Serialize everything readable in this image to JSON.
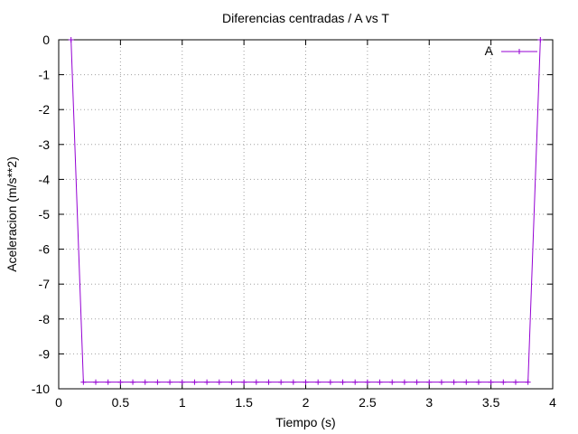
{
  "chart_data": {
    "type": "line",
    "title": "Diferencias centradas / A vs T",
    "xlabel": "Tiempo (s)",
    "ylabel": "Aceleracion (m/s**2)",
    "xlim": [
      0,
      4
    ],
    "ylim": [
      -10,
      0
    ],
    "xticks": [
      "0",
      "0.5",
      "1",
      "1.5",
      "2",
      "2.5",
      "3",
      "3.5",
      "4"
    ],
    "yticks": [
      "0",
      "-1",
      "-2",
      "-3",
      "-4",
      "-5",
      "-6",
      "-7",
      "-8",
      "-9",
      "-10"
    ],
    "grid": true,
    "legend_position": "top-right",
    "series": [
      {
        "name": "A",
        "color": "#9400d3",
        "marker": "plus",
        "x": [
          0.1,
          0.2,
          0.3,
          0.4,
          0.5,
          0.6,
          0.7,
          0.8,
          0.9,
          1.0,
          1.1,
          1.2,
          1.3,
          1.4,
          1.5,
          1.6,
          1.7,
          1.8,
          1.9,
          2.0,
          2.1,
          2.2,
          2.3,
          2.4,
          2.5,
          2.6,
          2.7,
          2.8,
          2.9,
          3.0,
          3.1,
          3.2,
          3.3,
          3.4,
          3.5,
          3.6,
          3.7,
          3.8,
          3.9
        ],
        "y": [
          0,
          -9.81,
          -9.81,
          -9.81,
          -9.81,
          -9.81,
          -9.81,
          -9.81,
          -9.81,
          -9.81,
          -9.81,
          -9.81,
          -9.81,
          -9.81,
          -9.81,
          -9.81,
          -9.81,
          -9.81,
          -9.81,
          -9.81,
          -9.81,
          -9.81,
          -9.81,
          -9.81,
          -9.81,
          -9.81,
          -9.81,
          -9.81,
          -9.81,
          -9.81,
          -9.81,
          -9.81,
          -9.81,
          -9.81,
          -9.81,
          -9.81,
          -9.81,
          -9.81,
          0
        ]
      }
    ]
  }
}
